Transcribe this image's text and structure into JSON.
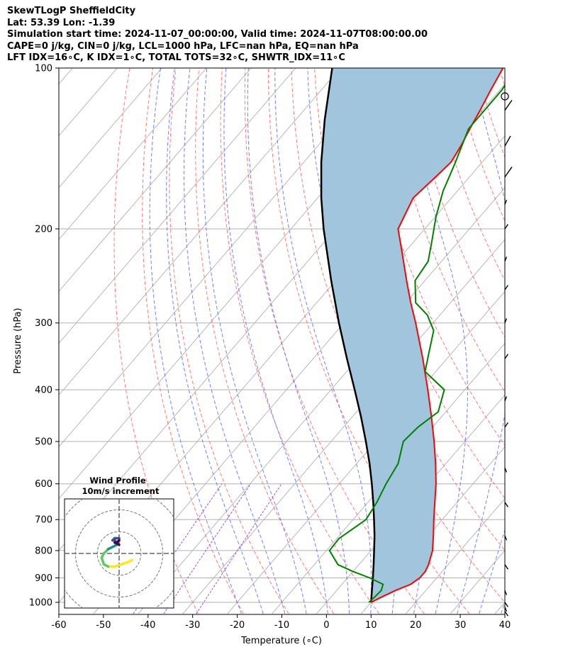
{
  "header": {
    "line1": "SkewTLogP SheffieldCity",
    "line2": "Lat: 53.39   Lon: -1.39",
    "line3": "Simulation start time: 2024-11-07_00:00:00, Valid time: 2024-11-07T08:00:00.00",
    "line4": "CAPE=0 j/kg, CIN=0 j/kg, LCL=1000 hPa, LFC=nan hPa, EQ=nan hPa",
    "line5": "LFT IDX=16∘C, K IDX=1∘C, TOTAL TOTS=32∘C, SHWTR_IDX=11∘C"
  },
  "chart_data": [
    {
      "type": "line",
      "chart": "skew-t log-p",
      "xlabel": "Temperature (∘C)",
      "ylabel": "Pressure (hPa)",
      "xlim": [
        -60,
        40
      ],
      "ylim": [
        1050,
        100
      ],
      "y_scale": "log",
      "x_ticks": [
        -60,
        -50,
        -40,
        -30,
        -20,
        -10,
        0,
        10,
        20,
        30,
        40
      ],
      "y_ticks": [
        1000,
        900,
        800,
        700,
        600,
        500,
        400,
        300,
        200,
        100
      ],
      "grid": true,
      "colors": {
        "temperature": "#ff0000",
        "dewpoint": "#008000",
        "parcel": "#000000",
        "shade": "#a2c5de",
        "dry_adiabats": "#ff6a6a",
        "moist_adiabats": "#5a6bff",
        "mixing_ratio": "#9a4fd3",
        "isotherms": "#b0b0b0"
      },
      "series": [
        {
          "key": "temperature",
          "pressure": [
            1000,
            975,
            950,
            925,
            900,
            875,
            850,
            800,
            750,
            700,
            650,
            600,
            550,
            500,
            450,
            400,
            350,
            300,
            275,
            250,
            225,
            200,
            175,
            160,
            150,
            140,
            130,
            120,
            110,
            100
          ],
          "temperature": [
            10.0,
            11.5,
            13.2,
            15.4,
            16.2,
            16.2,
            15.6,
            13.8,
            11.1,
            8.1,
            5.0,
            1.7,
            -2.3,
            -6.9,
            -12.2,
            -18.3,
            -25.4,
            -33.9,
            -38.9,
            -44.1,
            -49.7,
            -56.0,
            -58.6,
            -57.6,
            -57.0,
            -57.9,
            -59.2,
            -60.5,
            -62.0,
            -63.5
          ]
        },
        {
          "key": "dewpoint",
          "pressure": [
            1000,
            975,
            950,
            925,
            900,
            875,
            850,
            800,
            760,
            700,
            650,
            600,
            550,
            500,
            470,
            440,
            400,
            370,
            340,
            310,
            290,
            275,
            250,
            230,
            210,
            190,
            170,
            150,
            130,
            110,
            100
          ],
          "temperature": [
            9.5,
            9.8,
            10.0,
            9.2,
            5.0,
            -0.1,
            -4.7,
            -9.3,
            -9.5,
            -7.1,
            -8.0,
            -9.5,
            -10.7,
            -13.8,
            -13.3,
            -11.7,
            -14.6,
            -22.4,
            -25.3,
            -28.4,
            -32.8,
            -37.8,
            -42.2,
            -43.0,
            -46.2,
            -49.8,
            -53.2,
            -56.0,
            -59.5,
            -59.5,
            -60.5
          ]
        },
        {
          "key": "parcel",
          "pressure": [
            1000,
            950,
            900,
            850,
            800,
            750,
            700,
            650,
            600,
            550,
            500,
            450,
            400,
            350,
            300,
            250,
            200,
            175,
            150,
            125,
            100
          ],
          "temperature": [
            10.0,
            7.9,
            5.7,
            3.3,
            0.7,
            -2.1,
            -5.3,
            -8.8,
            -12.7,
            -17.1,
            -22.2,
            -28.0,
            -34.7,
            -42.4,
            -51.1,
            -61.0,
            -72.7,
            -79.2,
            -86.1,
            -93.5,
            -101.8
          ]
        }
      ],
      "wind_barbs": {
        "pressure": [
          100,
          120,
          140,
          160,
          180,
          200,
          230,
          260,
          300,
          350,
          420,
          470,
          560,
          650,
          750,
          850,
          950,
          1000,
          1020,
          1040
        ]
      }
    },
    {
      "type": "line",
      "chart": "hodograph",
      "title": "Wind Profile",
      "subtitle": "10m/s increment",
      "ring_step": 10,
      "rings": [
        10,
        20,
        30
      ],
      "range": [
        -25,
        25
      ],
      "colormap": [
        "#440154",
        "#3b528b",
        "#21918c",
        "#5ec962",
        "#fde725"
      ],
      "u": [
        6,
        4,
        1,
        -2,
        -5,
        -7,
        -8,
        -7,
        -5,
        -3,
        -1,
        -1,
        -2,
        -3,
        -2,
        0,
        0,
        -1,
        -2,
        0
      ],
      "v": [
        -3,
        -4,
        -5,
        -6,
        -6,
        -5,
        -2,
        0,
        2,
        3,
        4,
        5,
        6,
        6,
        7,
        7,
        6,
        5,
        5,
        4
      ]
    }
  ]
}
